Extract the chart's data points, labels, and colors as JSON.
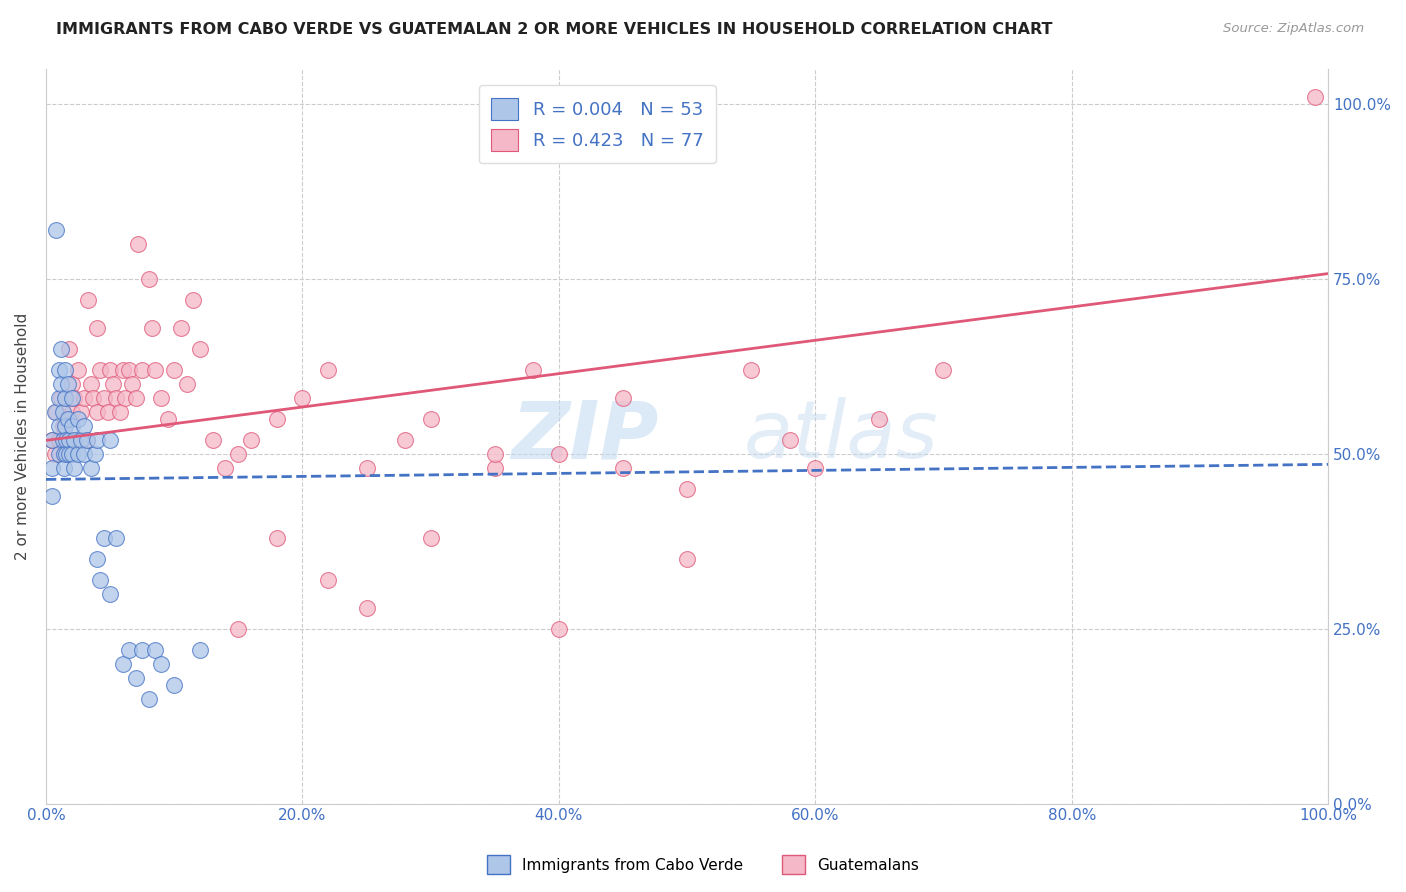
{
  "title": "IMMIGRANTS FROM CABO VERDE VS GUATEMALAN 2 OR MORE VEHICLES IN HOUSEHOLD CORRELATION CHART",
  "source": "Source: ZipAtlas.com",
  "ylabel": "2 or more Vehicles in Household",
  "xticklabels": [
    "0.0%",
    "20.0%",
    "40.0%",
    "60.0%",
    "80.0%",
    "100.0%"
  ],
  "yticklabels_right": [
    "0.0%",
    "25.0%",
    "50.0%",
    "75.0%",
    "100.0%"
  ],
  "xlim": [
    0,
    1.0
  ],
  "ylim": [
    0,
    1.05
  ],
  "r_blue": 0.004,
  "n_blue": 53,
  "r_pink": 0.423,
  "n_pink": 77,
  "blue_fill": "#aec6e8",
  "blue_edge": "#4472c4",
  "pink_fill": "#f4b8c8",
  "pink_edge": "#e05878",
  "blue_line_color": "#4472c4",
  "pink_line_color": "#e05878",
  "watermark_zip": "ZIP",
  "watermark_atlas": "atlas",
  "legend_label_blue": "Immigrants from Cabo Verde",
  "legend_label_pink": "Guatemalans",
  "blue_scatter_x": [
    0.005,
    0.005,
    0.005,
    0.007,
    0.008,
    0.01,
    0.01,
    0.01,
    0.01,
    0.012,
    0.012,
    0.013,
    0.013,
    0.014,
    0.014,
    0.015,
    0.015,
    0.015,
    0.016,
    0.016,
    0.017,
    0.017,
    0.018,
    0.018,
    0.02,
    0.02,
    0.02,
    0.022,
    0.022,
    0.025,
    0.025,
    0.027,
    0.03,
    0.03,
    0.032,
    0.035,
    0.038,
    0.04,
    0.04,
    0.042,
    0.045,
    0.05,
    0.05,
    0.055,
    0.06,
    0.065,
    0.07,
    0.075,
    0.08,
    0.085,
    0.09,
    0.1,
    0.12
  ],
  "blue_scatter_y": [
    0.52,
    0.48,
    0.44,
    0.56,
    0.82,
    0.62,
    0.58,
    0.54,
    0.5,
    0.65,
    0.6,
    0.56,
    0.52,
    0.5,
    0.48,
    0.62,
    0.58,
    0.54,
    0.52,
    0.5,
    0.6,
    0.55,
    0.52,
    0.5,
    0.58,
    0.54,
    0.5,
    0.52,
    0.48,
    0.55,
    0.5,
    0.52,
    0.54,
    0.5,
    0.52,
    0.48,
    0.5,
    0.52,
    0.35,
    0.32,
    0.38,
    0.52,
    0.3,
    0.38,
    0.2,
    0.22,
    0.18,
    0.22,
    0.15,
    0.22,
    0.2,
    0.17,
    0.22
  ],
  "pink_scatter_x": [
    0.005,
    0.007,
    0.008,
    0.01,
    0.012,
    0.013,
    0.014,
    0.015,
    0.016,
    0.017,
    0.018,
    0.02,
    0.02,
    0.022,
    0.025,
    0.027,
    0.03,
    0.032,
    0.033,
    0.035,
    0.037,
    0.04,
    0.04,
    0.042,
    0.045,
    0.048,
    0.05,
    0.052,
    0.055,
    0.058,
    0.06,
    0.062,
    0.065,
    0.067,
    0.07,
    0.072,
    0.075,
    0.08,
    0.083,
    0.085,
    0.09,
    0.095,
    0.1,
    0.105,
    0.11,
    0.115,
    0.12,
    0.13,
    0.14,
    0.15,
    0.16,
    0.18,
    0.2,
    0.22,
    0.25,
    0.28,
    0.3,
    0.35,
    0.38,
    0.4,
    0.45,
    0.5,
    0.55,
    0.58,
    0.6,
    0.65,
    0.7,
    0.15,
    0.18,
    0.22,
    0.25,
    0.3,
    0.35,
    0.4,
    0.45,
    0.5,
    0.99
  ],
  "pink_scatter_y": [
    0.52,
    0.5,
    0.56,
    0.52,
    0.58,
    0.54,
    0.5,
    0.58,
    0.55,
    0.52,
    0.65,
    0.6,
    0.56,
    0.58,
    0.62,
    0.56,
    0.58,
    0.52,
    0.72,
    0.6,
    0.58,
    0.56,
    0.68,
    0.62,
    0.58,
    0.56,
    0.62,
    0.6,
    0.58,
    0.56,
    0.62,
    0.58,
    0.62,
    0.6,
    0.58,
    0.8,
    0.62,
    0.75,
    0.68,
    0.62,
    0.58,
    0.55,
    0.62,
    0.68,
    0.6,
    0.72,
    0.65,
    0.52,
    0.48,
    0.5,
    0.52,
    0.55,
    0.58,
    0.62,
    0.48,
    0.52,
    0.55,
    0.48,
    0.62,
    0.5,
    0.58,
    0.45,
    0.62,
    0.52,
    0.48,
    0.55,
    0.62,
    0.25,
    0.38,
    0.32,
    0.28,
    0.38,
    0.5,
    0.25,
    0.48,
    0.35,
    1.01
  ]
}
